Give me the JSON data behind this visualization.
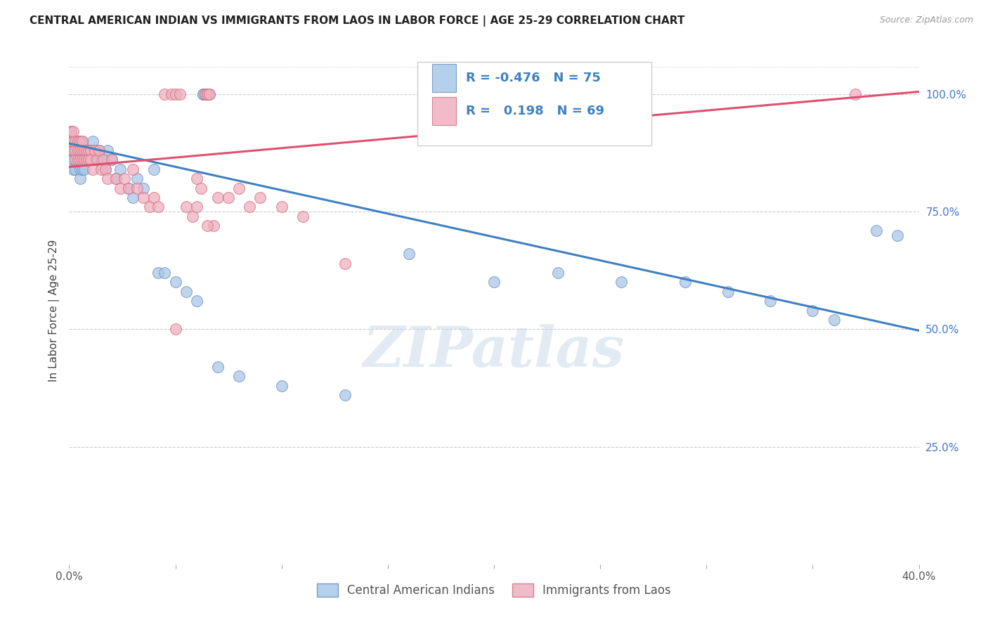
{
  "title": "CENTRAL AMERICAN INDIAN VS IMMIGRANTS FROM LAOS IN LABOR FORCE | AGE 25-29 CORRELATION CHART",
  "source_text": "Source: ZipAtlas.com",
  "ylabel": "In Labor Force | Age 25-29",
  "ytick_labels": [
    "100.0%",
    "75.0%",
    "50.0%",
    "25.0%"
  ],
  "ytick_values": [
    1.0,
    0.75,
    0.5,
    0.25
  ],
  "xmin": 0.0,
  "xmax": 0.4,
  "ymin": 0.0,
  "ymax": 1.08,
  "r_blue": -0.476,
  "n_blue": 75,
  "r_pink": 0.198,
  "n_pink": 69,
  "blue_color": "#a8c8e8",
  "pink_color": "#f0b0c0",
  "blue_edge_color": "#7090c0",
  "pink_edge_color": "#d07080",
  "blue_line_color": "#4080c0",
  "pink_line_color": "#e05070",
  "legend_label_blue": "Central American Indians",
  "legend_label_pink": "Immigrants from Laos",
  "watermark": "ZIPatlas",
  "blue_trend_x0": 0.0,
  "blue_trend_y0": 0.895,
  "blue_trend_x1": 0.4,
  "blue_trend_y1": 0.497,
  "pink_trend_x0": 0.0,
  "pink_trend_y0": 0.845,
  "pink_trend_x1": 0.4,
  "pink_trend_y1": 1.005,
  "blue_x": [
    0.001,
    0.001,
    0.001,
    0.002,
    0.002,
    0.002,
    0.002,
    0.003,
    0.003,
    0.003,
    0.003,
    0.004,
    0.004,
    0.004,
    0.005,
    0.005,
    0.005,
    0.005,
    0.005,
    0.006,
    0.006,
    0.006,
    0.006,
    0.007,
    0.007,
    0.007,
    0.008,
    0.008,
    0.009,
    0.009,
    0.01,
    0.01,
    0.011,
    0.012,
    0.013,
    0.014,
    0.015,
    0.016,
    0.017,
    0.018,
    0.02,
    0.022,
    0.024,
    0.028,
    0.03,
    0.032,
    0.035,
    0.04,
    0.042,
    0.045,
    0.05,
    0.055,
    0.06,
    0.063,
    0.063,
    0.064,
    0.064,
    0.065,
    0.065,
    0.066,
    0.07,
    0.08,
    0.1,
    0.13,
    0.16,
    0.2,
    0.23,
    0.26,
    0.29,
    0.31,
    0.33,
    0.35,
    0.36,
    0.38,
    0.39
  ],
  "blue_y": [
    0.88,
    0.9,
    0.92,
    0.88,
    0.9,
    0.86,
    0.84,
    0.9,
    0.88,
    0.86,
    0.84,
    0.9,
    0.86,
    0.88,
    0.9,
    0.88,
    0.86,
    0.84,
    0.82,
    0.9,
    0.88,
    0.86,
    0.84,
    0.88,
    0.86,
    0.84,
    0.88,
    0.86,
    0.88,
    0.86,
    0.88,
    0.86,
    0.9,
    0.88,
    0.86,
    0.88,
    0.86,
    0.86,
    0.84,
    0.88,
    0.86,
    0.82,
    0.84,
    0.8,
    0.78,
    0.82,
    0.8,
    0.84,
    0.62,
    0.62,
    0.6,
    0.58,
    0.56,
    1.0,
    1.0,
    1.0,
    1.0,
    1.0,
    1.0,
    1.0,
    0.42,
    0.4,
    0.38,
    0.36,
    0.66,
    0.6,
    0.62,
    0.6,
    0.6,
    0.58,
    0.56,
    0.54,
    0.52,
    0.71,
    0.7
  ],
  "pink_x": [
    0.001,
    0.001,
    0.002,
    0.002,
    0.002,
    0.003,
    0.003,
    0.003,
    0.004,
    0.004,
    0.004,
    0.005,
    0.005,
    0.005,
    0.006,
    0.006,
    0.006,
    0.007,
    0.007,
    0.008,
    0.008,
    0.009,
    0.009,
    0.01,
    0.01,
    0.011,
    0.012,
    0.013,
    0.014,
    0.015,
    0.016,
    0.017,
    0.018,
    0.02,
    0.022,
    0.024,
    0.026,
    0.028,
    0.03,
    0.032,
    0.035,
    0.038,
    0.04,
    0.042,
    0.045,
    0.048,
    0.05,
    0.052,
    0.055,
    0.058,
    0.06,
    0.062,
    0.064,
    0.065,
    0.065,
    0.066,
    0.068,
    0.07,
    0.075,
    0.08,
    0.085,
    0.09,
    0.1,
    0.11,
    0.13,
    0.05,
    0.06,
    0.065,
    0.37
  ],
  "pink_y": [
    0.9,
    0.92,
    0.88,
    0.9,
    0.92,
    0.88,
    0.9,
    0.86,
    0.9,
    0.88,
    0.86,
    0.88,
    0.9,
    0.86,
    0.88,
    0.9,
    0.86,
    0.88,
    0.86,
    0.88,
    0.86,
    0.88,
    0.86,
    0.88,
    0.86,
    0.84,
    0.88,
    0.86,
    0.88,
    0.84,
    0.86,
    0.84,
    0.82,
    0.86,
    0.82,
    0.8,
    0.82,
    0.8,
    0.84,
    0.8,
    0.78,
    0.76,
    0.78,
    0.76,
    1.0,
    1.0,
    1.0,
    1.0,
    0.76,
    0.74,
    0.82,
    0.8,
    1.0,
    1.0,
    1.0,
    1.0,
    0.72,
    0.78,
    0.78,
    0.8,
    0.76,
    0.78,
    0.76,
    0.74,
    0.64,
    0.5,
    0.76,
    0.72,
    1.0
  ]
}
